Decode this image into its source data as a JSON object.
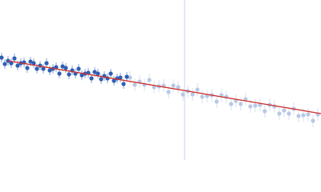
{
  "chart_data": {
    "type": "scatter",
    "xlim": [
      0,
      400
    ],
    "ylim": [
      0,
      200
    ],
    "series": [
      {
        "color": "#2f5fb3",
        "x": [
          2,
          6,
          10,
          14,
          18,
          22,
          26,
          30,
          34,
          38,
          42,
          46,
          50,
          54,
          58,
          62,
          66,
          70,
          74,
          78,
          82,
          86,
          90,
          94,
          98,
          102,
          106,
          110,
          114,
          118,
          122,
          126,
          130,
          134,
          138,
          142,
          146,
          150,
          154,
          158
        ],
        "values": [
          128,
          120,
          124,
          121,
          127,
          118,
          121,
          122,
          115,
          123,
          121,
          114,
          118,
          114,
          121,
          112,
          114,
          116,
          108,
          117,
          115,
          107,
          112,
          108,
          114,
          106,
          108,
          109,
          102,
          110,
          108,
          101,
          105,
          102,
          108,
          99,
          102,
          103,
          95,
          104
        ],
        "errors": [
          6,
          6,
          6,
          6,
          6,
          6,
          6,
          6,
          6,
          6,
          6,
          6,
          6,
          6,
          6,
          6,
          6,
          6,
          6,
          6,
          6,
          6,
          6,
          6,
          6,
          6,
          6,
          6,
          6,
          6,
          6,
          6,
          6,
          6,
          6,
          6,
          6,
          6,
          6,
          6
        ]
      },
      {
        "color": "#b8c8e6",
        "x": [
          162,
          168,
          174,
          180,
          186,
          192,
          198,
          204,
          210,
          216,
          222,
          228,
          234,
          240,
          246,
          252,
          258,
          264,
          270,
          276,
          282,
          288,
          294,
          300,
          306,
          312,
          318,
          324,
          330,
          336,
          342,
          348,
          354,
          360,
          366,
          372,
          378,
          384,
          390,
          396
        ],
        "values": [
          103,
          94,
          98,
          94,
          100,
          91,
          92,
          93,
          85,
          93,
          91,
          82,
          86,
          82,
          88,
          79,
          80,
          81,
          73,
          81,
          79,
          70,
          74,
          70,
          76,
          67,
          68,
          69,
          61,
          69,
          67,
          58,
          62,
          58,
          64,
          55,
          56,
          57,
          49,
          57
        ],
        "errors": [
          8,
          8,
          8,
          8,
          8,
          8,
          8,
          8,
          8,
          8,
          8,
          8,
          8,
          8,
          8,
          8,
          8,
          8,
          8,
          8,
          8,
          8,
          8,
          8,
          8,
          8,
          8,
          8,
          8,
          8,
          8,
          8,
          8,
          8,
          8,
          8,
          8,
          8,
          8,
          8
        ]
      }
    ],
    "fit": {
      "color": "#d0312d",
      "x": [
        10,
        400
      ],
      "values": [
        124,
        58
      ]
    },
    "vline": {
      "color": "#c8d2e6",
      "x": 230
    }
  }
}
